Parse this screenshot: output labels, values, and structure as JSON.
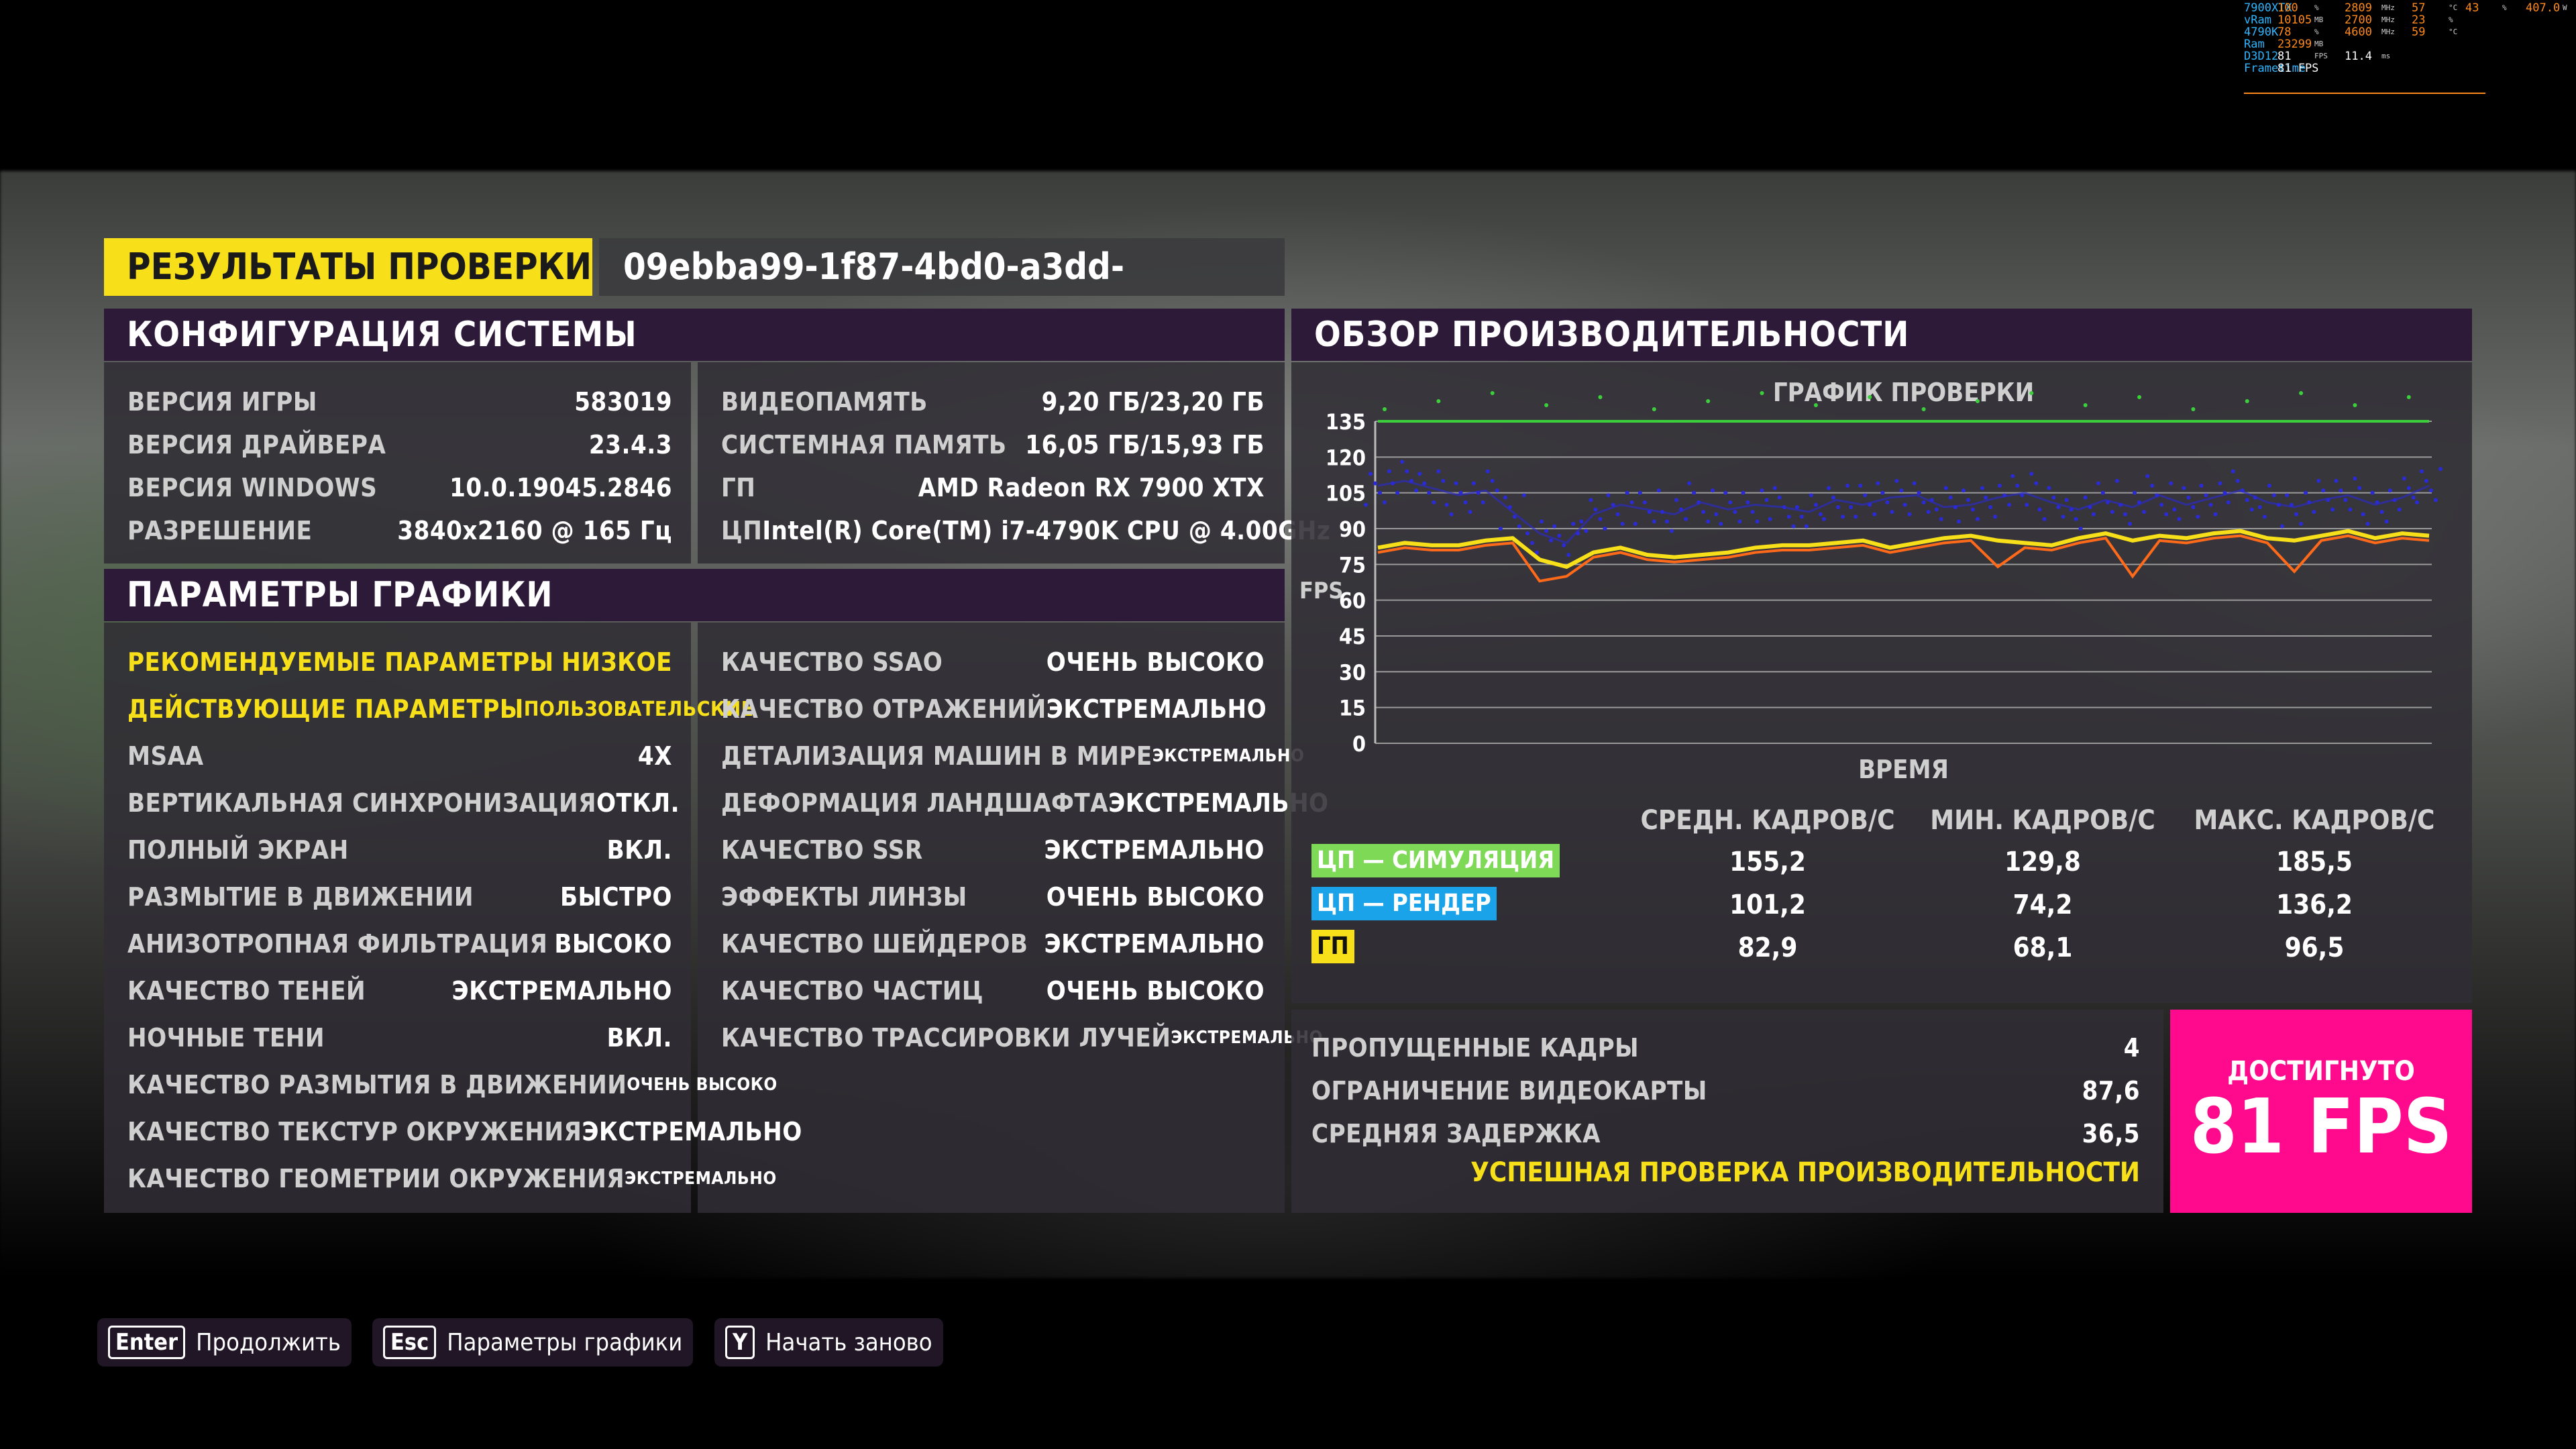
{
  "title": {
    "label": "РЕЗУЛЬТАТЫ ПРОВЕРКИ",
    "id": "09ebba99-1f87-4bd0-a3dd-f6d0b5a42c85"
  },
  "sysconfig": {
    "header": "КОНФИГУРАЦИЯ СИСТЕМЫ",
    "left": [
      {
        "k": "ВЕРСИЯ ИГРЫ",
        "v": "583019"
      },
      {
        "k": "ВЕРСИЯ ДРАЙВЕРА",
        "v": "23.4.3"
      },
      {
        "k": "ВЕРСИЯ WINDOWS",
        "v": "10.0.19045.2846"
      },
      {
        "k": "РАЗРЕШЕНИЕ",
        "v": "3840x2160 @ 165 Гц"
      }
    ],
    "right": [
      {
        "k": "ВИДЕОПАМЯТЬ",
        "v": "9,20 ГБ/23,20 ГБ"
      },
      {
        "k": "СИСТЕМНАЯ ПАМЯТЬ",
        "v": "16,05 ГБ/15,93 ГБ"
      },
      {
        "k": "ГП",
        "v": "AMD Radeon RX 7900 XTX"
      },
      {
        "k": "ЦП",
        "v": "Intel(R) Core(TM) i7-4790K CPU @ 4.00GHz"
      }
    ]
  },
  "graphics": {
    "header": "ПАРАМЕТРЫ ГРАФИКИ",
    "left": [
      {
        "k": "РЕКОМЕНДУЕМЫЕ ПАРАМЕТРЫ",
        "v": "НИЗКОЕ"
      },
      {
        "k": "ДЕЙСТВУЮЩИЕ ПАРАМЕТРЫ",
        "v": "ПОЛЬЗОВАТЕЛЬСКИЕ"
      },
      {
        "k": "MSAA",
        "v": "4X"
      },
      {
        "k": "ВЕРТИКАЛЬНАЯ СИНХРОНИЗАЦИЯ",
        "v": "ОТКЛ."
      },
      {
        "k": "ПОЛНЫЙ ЭКРАН",
        "v": "ВКЛ."
      },
      {
        "k": "РАЗМЫТИЕ В ДВИЖЕНИИ",
        "v": "БЫСТРО"
      },
      {
        "k": "АНИЗОТРОПНАЯ ФИЛЬТРАЦИЯ",
        "v": "ВЫСОКО"
      },
      {
        "k": "КАЧЕСТВО ТЕНЕЙ",
        "v": "ЭКСТРЕМАЛЬНО"
      },
      {
        "k": "НОЧНЫЕ ТЕНИ",
        "v": "ВКЛ."
      },
      {
        "k": "КАЧЕСТВО РАЗМЫТИЯ В ДВИЖЕНИИ",
        "v": "ОЧЕНЬ ВЫСОКО"
      },
      {
        "k": "КАЧЕСТВО ТЕКСТУР ОКРУЖЕНИЯ",
        "v": "ЭКСТРЕМАЛЬНО"
      },
      {
        "k": "КАЧЕСТВО ГЕОМЕТРИИ ОКРУЖЕНИЯ",
        "v": "ЭКСТРЕМАЛЬНО"
      }
    ],
    "right": [
      {
        "k": "КАЧЕСТВО SSAO",
        "v": "ОЧЕНЬ ВЫСОКО"
      },
      {
        "k": "КАЧЕСТВО ОТРАЖЕНИЙ",
        "v": "ЭКСТРЕМАЛЬНО"
      },
      {
        "k": "ДЕТАЛИЗАЦИЯ МАШИН В МИРЕ",
        "v": "ЭКСТРЕМАЛЬНО"
      },
      {
        "k": "ДЕФОРМАЦИЯ ЛАНДШАФТА",
        "v": "ЭКСТРЕМАЛЬНО"
      },
      {
        "k": "КАЧЕСТВО SSR",
        "v": "ЭКСТРЕМАЛЬНО"
      },
      {
        "k": "ЭФФЕКТЫ ЛИНЗЫ",
        "v": "ОЧЕНЬ ВЫСОКО"
      },
      {
        "k": "КАЧЕСТВО ШЕЙДЕРОВ",
        "v": "ЭКСТРЕМАЛЬНО"
      },
      {
        "k": "КАЧЕСТВО ЧАСТИЦ",
        "v": "ОЧЕНЬ ВЫСОКО"
      },
      {
        "k": "КАЧЕСТВО ТРАССИРОВКИ ЛУЧЕЙ",
        "v": "ЭКСТРЕМАЛЬНО"
      }
    ]
  },
  "perf": {
    "header": "ОБЗОР ПРОИЗВОДИТЕЛЬНОСТИ",
    "col_headers": [
      "СРЕДН. КАДРОВ/С",
      "МИН. КАДРОВ/С",
      "МАКС. КАДРОВ/С"
    ],
    "rows": [
      {
        "name": "ЦП — СИМУЛЯЦИЯ",
        "color": "#7ed957",
        "avg": "155,2",
        "min": "129,8",
        "max": "185,5"
      },
      {
        "name": "ЦП — РЕНДЕР",
        "color": "#1aa3e8",
        "avg": "101,2",
        "min": "74,2",
        "max": "136,2"
      },
      {
        "name": "ГП",
        "color": "#f7e01a",
        "avg": "82,9",
        "min": "68,1",
        "max": "96,5"
      }
    ],
    "stats": [
      {
        "k": "ПРОПУЩЕННЫЕ КАДРЫ",
        "v": "4"
      },
      {
        "k": "ОГРАНИЧЕНИЕ ВИДЕОКАРТЫ",
        "v": "87,6"
      },
      {
        "k": "СРЕДНЯЯ ЗАДЕРЖКА",
        "v": "36,5"
      }
    ],
    "success": "УСПЕШНАЯ ПРОВЕРКА ПРОИЗВОДИТЕЛЬНОСТИ",
    "achieved_label": "ДОСТИГНУТО",
    "achieved_value": "81 FPS",
    "achieved_color": "#ff0a8c"
  },
  "chart_data": {
    "type": "line",
    "title": "ГРАФИК ПРОВЕРКИ",
    "xlabel": "ВРЕМЯ",
    "ylabel": "FPS",
    "ylim": [
      0,
      135
    ],
    "yticks": [
      0,
      15,
      30,
      45,
      60,
      75,
      90,
      105,
      120,
      135
    ],
    "grid": true,
    "series": [
      {
        "name": "ЦП — СИМУЛЯЦИЯ",
        "color": "#3bd03b",
        "values": [
          135,
          135,
          135,
          135,
          135,
          135,
          135,
          135,
          135,
          135,
          135,
          135,
          135,
          135,
          135,
          135,
          135,
          135,
          135,
          135,
          135,
          135,
          135,
          135,
          135,
          135,
          135,
          135,
          135,
          135,
          135,
          135,
          135,
          135,
          135,
          135,
          135,
          135,
          135,
          135
        ]
      },
      {
        "name": "ЦП — РЕНДЕР",
        "color": "#2a2ad8",
        "values": [
          108,
          110,
          107,
          104,
          106,
          97,
          88,
          84,
          96,
          100,
          98,
          96,
          101,
          98,
          100,
          99,
          97,
          102,
          100,
          103,
          104,
          99,
          100,
          103,
          105,
          101,
          98,
          102,
          99,
          104,
          100,
          103,
          106,
          101,
          99,
          102,
          104,
          100,
          103,
          108
        ]
      },
      {
        "name": "ГП",
        "color": "#f7e01a",
        "values": [
          82,
          84,
          83,
          83,
          85,
          86,
          77,
          74,
          80,
          82,
          79,
          78,
          79,
          80,
          82,
          83,
          83,
          84,
          85,
          82,
          84,
          86,
          87,
          85,
          84,
          83,
          86,
          88,
          85,
          87,
          86,
          88,
          89,
          86,
          85,
          87,
          89,
          86,
          88,
          87
        ]
      },
      {
        "name": "",
        "color": "#ff6a1a",
        "values": [
          80,
          82,
          81,
          81,
          83,
          84,
          68,
          70,
          78,
          80,
          77,
          76,
          77,
          78,
          80,
          81,
          81,
          82,
          83,
          80,
          82,
          84,
          85,
          74,
          82,
          81,
          84,
          86,
          70,
          85,
          84,
          86,
          87,
          84,
          72,
          85,
          87,
          84,
          86,
          85
        ]
      }
    ]
  },
  "buttons": [
    {
      "cap": "Enter",
      "label": "Продолжить"
    },
    {
      "cap": "Esc",
      "label": "Параметры графики"
    },
    {
      "cap": "Y",
      "label": "Начать заново"
    }
  ],
  "hud": {
    "lines": [
      {
        "label": "7900XTX",
        "v1": "100",
        "u1": "%",
        "v2": "2809",
        "u2": "MHz",
        "v3": "57",
        "u3": "°C",
        "v4": "43",
        "u4": "%",
        "v5": "407.0",
        "u5": "W"
      },
      {
        "label": "vRam",
        "v1": "10105",
        "u1": "MB",
        "v2": "2700",
        "u2": "MHz",
        "v3": "23",
        "u3": "%"
      },
      {
        "label": "4790K",
        "v1": "78",
        "u1": "%",
        "v2": "4600",
        "u2": "MHz",
        "v3": "59",
        "u3": "°C"
      },
      {
        "label": "Ram",
        "v1": "23299",
        "u1": "MB"
      },
      {
        "label": "D3D12",
        "v1": "81",
        "u1": "FPS",
        "v2": "11.4",
        "u2": "ms"
      },
      {
        "label": "Frametime",
        "v1": "81 FPS"
      }
    ]
  }
}
